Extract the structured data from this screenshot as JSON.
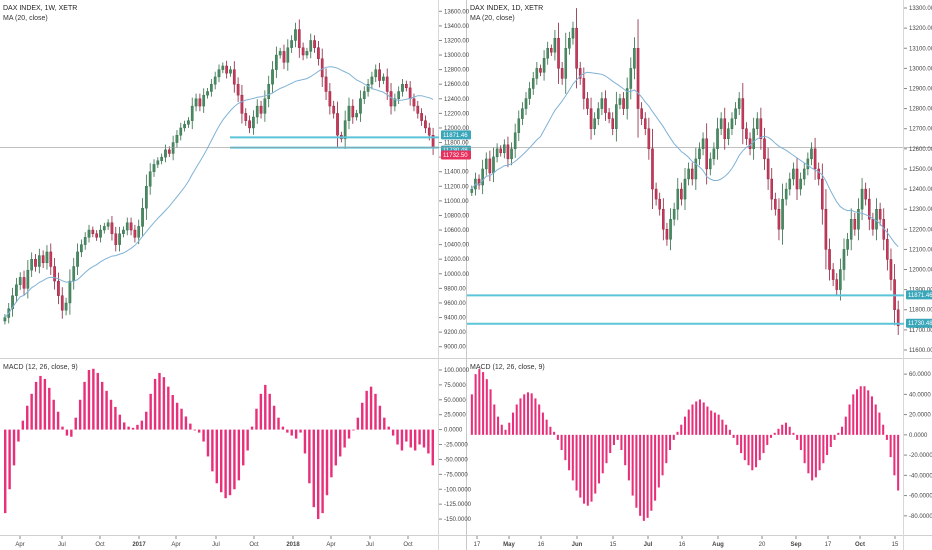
{
  "chart_data": [
    {
      "panel": "weekly",
      "type": "candlestick",
      "title": "DAX INDEX, 1W, XETR",
      "indicator": "MA (20, close)",
      "x_tick_labels": [
        "Apr",
        "Jul",
        "Oct",
        "2017",
        "Apr",
        "Jul",
        "Oct",
        "2018",
        "Apr",
        "Jul",
        "Oct"
      ],
      "y_range": [
        8900,
        13700
      ],
      "y_ticks": [
        9000,
        9200,
        9400,
        9600,
        9800,
        10000,
        10200,
        10400,
        10600,
        10800,
        11000,
        11200,
        11400,
        11600,
        11800,
        12000,
        12200,
        12400,
        12600,
        12800,
        13000,
        13200,
        13400,
        13600
      ],
      "y_tick_labels": [
        "9000.00",
        "9200.00",
        "9400.00",
        "9600.00",
        "9800.00",
        "10000.00",
        "10200.00",
        "10400.00",
        "10600.00",
        "10800.00",
        "11000.00",
        "11200.00",
        "11400.00",
        "11600.00",
        "11800.00",
        "12000.00",
        "12200.00",
        "12400.00",
        "12600.00",
        "12800.00",
        "13000.00",
        "13200.00",
        "13400.00",
        "13600.00"
      ],
      "closes": [
        9400,
        9520,
        9700,
        9850,
        9950,
        9800,
        10050,
        10200,
        10100,
        10250,
        10150,
        10300,
        10100,
        9900,
        9700,
        9500,
        9600,
        9900,
        10100,
        10300,
        10400,
        10500,
        10600,
        10550,
        10500,
        10600,
        10650,
        10700,
        10550,
        10400,
        10550,
        10600,
        10700,
        10600,
        10500,
        10650,
        10900,
        11200,
        11400,
        11500,
        11550,
        11600,
        11700,
        11650,
        11800,
        11900,
        12000,
        12050,
        12100,
        12300,
        12400,
        12300,
        12450,
        12500,
        12600,
        12700,
        12800,
        12850,
        12750,
        12800,
        12600,
        12450,
        12200,
        12100,
        12000,
        12150,
        12300,
        12200,
        12400,
        12600,
        12800,
        13000,
        13050,
        12900,
        13100,
        13200,
        13350,
        13100,
        13000,
        13050,
        13200,
        13100,
        12950,
        12700,
        12500,
        12300,
        12200,
        11900,
        11850,
        12100,
        12300,
        12150,
        12200,
        12400,
        12500,
        12600,
        12700,
        12800,
        12650,
        12700,
        12500,
        12300,
        12400,
        12500,
        12600,
        12550,
        12400,
        12300,
        12200,
        12100,
        12000,
        11900,
        11732.5
      ],
      "ma20_name": "MA (20, close)",
      "level_lines": [
        {
          "value": 11871.46,
          "label": "11871.46"
        },
        {
          "value": 11730.48,
          "label": "11730.48"
        }
      ],
      "last_price": {
        "value": 11732.5,
        "label": "11732.50"
      },
      "macd": {
        "title": "MACD (12, 26, close, 9)",
        "y_range": [
          -170,
          110
        ],
        "y_ticks": [
          100,
          75,
          50,
          25,
          0,
          -25,
          -50,
          -75,
          -100,
          -125,
          -150
        ],
        "y_tick_labels": [
          "100.0000",
          "75.0000",
          "50.0000",
          "25.0000",
          "0.0000",
          "-25.0000",
          "-50.0000",
          "-75.0000",
          "-100.0000",
          "-125.0000",
          "-150.0000"
        ],
        "histogram": [
          -140,
          -100,
          -60,
          -20,
          15,
          40,
          60,
          80,
          90,
          85,
          70,
          50,
          30,
          5,
          -10,
          -12,
          20,
          50,
          80,
          100,
          102,
          95,
          80,
          65,
          50,
          38,
          25,
          12,
          5,
          3,
          8,
          15,
          30,
          60,
          85,
          95,
          88,
          72,
          58,
          45,
          35,
          22,
          10,
          0,
          -5,
          -20,
          -45,
          -70,
          -90,
          -105,
          -115,
          -110,
          -100,
          -85,
          -60,
          -35,
          5,
          35,
          60,
          75,
          60,
          40,
          20,
          5,
          -5,
          -10,
          -15,
          -5,
          -40,
          -90,
          -130,
          -150,
          -140,
          -110,
          -80,
          -60,
          -45,
          -30,
          -15,
          0,
          20,
          45,
          65,
          72,
          60,
          40,
          20,
          5,
          -10,
          -25,
          -35,
          -20,
          -30,
          -35,
          -25,
          -30,
          -40,
          -60
        ]
      }
    },
    {
      "panel": "daily",
      "type": "candlestick",
      "title": "DAX INDEX, 1D, XETR",
      "indicator": "MA (20, close)",
      "x_tick_labels": [
        "17",
        "May",
        "16",
        "Jun",
        "15",
        "Jul",
        "16",
        "Aug",
        "20",
        "Sep",
        "17",
        "Oct",
        "15"
      ],
      "y_range": [
        11580,
        13320
      ],
      "y_ticks": [
        11600,
        11700,
        11800,
        11900,
        12000,
        12100,
        12200,
        12300,
        12400,
        12500,
        12600,
        12700,
        12800,
        12900,
        13000,
        13100,
        13200,
        13300
      ],
      "y_tick_labels": [
        "11600.00",
        "11700.00",
        "11800.00",
        "11900.00",
        "12000.00",
        "12100.00",
        "12200.00",
        "12300.00",
        "12400.00",
        "12500.00",
        "12600.00",
        "12700.00",
        "12800.00",
        "12900.00",
        "13000.00",
        "13100.00",
        "13200.00",
        "13300.00"
      ],
      "closes": [
        12400,
        12450,
        12420,
        12500,
        12550,
        12480,
        12560,
        12600,
        12580,
        12620,
        12550,
        12600,
        12680,
        12750,
        12800,
        12850,
        12900,
        12950,
        13000,
        12980,
        13050,
        13100,
        13080,
        13150,
        13000,
        12950,
        13100,
        13150,
        13200,
        13000,
        12950,
        12850,
        12800,
        12700,
        12750,
        12800,
        12850,
        12780,
        12750,
        12700,
        12820,
        12850,
        12800,
        12900,
        13000,
        13100,
        12800,
        12750,
        12700,
        12600,
        12400,
        12350,
        12300,
        12200,
        12150,
        12250,
        12300,
        12400,
        12350,
        12450,
        12500,
        12450,
        12550,
        12600,
        12650,
        12500,
        12550,
        12600,
        12700,
        12750,
        12650,
        12700,
        12750,
        12800,
        12850,
        12700,
        12650,
        12600,
        12700,
        12750,
        12650,
        12550,
        12450,
        12350,
        12300,
        12200,
        12350,
        12400,
        12450,
        12500,
        12400,
        12450,
        12500,
        12550,
        12600,
        12500,
        12450,
        12300,
        12100,
        12000,
        11950,
        11900,
        12000,
        12100,
        12150,
        12250,
        12200,
        12300,
        12400,
        12350,
        12250,
        12200,
        12300,
        12250,
        12150,
        12050,
        11950,
        11800,
        11720
      ],
      "ma20_name": "MA (20, close)",
      "level_lines": [
        {
          "value": 11871.46,
          "label": "11871.46"
        },
        {
          "value": 11730.48,
          "label": "11730.48"
        }
      ],
      "macd": {
        "title": "MACD (12, 26, close, 9)",
        "y_range": [
          -95,
          70
        ],
        "y_ticks": [
          60,
          40,
          20,
          0,
          -20,
          -40,
          -60,
          -80
        ],
        "y_tick_labels": [
          "60.0000",
          "40.0000",
          "20.0000",
          "0.0000",
          "-20.0000",
          "-40.0000",
          "-60.0000",
          "-80.0000"
        ],
        "histogram": [
          40,
          60,
          65,
          62,
          55,
          45,
          30,
          18,
          10,
          5,
          12,
          22,
          30,
          36,
          40,
          42,
          41,
          36,
          30,
          22,
          15,
          8,
          3,
          -5,
          -15,
          -25,
          -35,
          -45,
          -55,
          -62,
          -68,
          -70,
          -66,
          -58,
          -48,
          -38,
          -28,
          -18,
          -10,
          -5,
          -15,
          -30,
          -45,
          -60,
          -72,
          -80,
          -85,
          -82,
          -75,
          -65,
          -52,
          -40,
          -28,
          -15,
          -5,
          3,
          10,
          18,
          25,
          30,
          33,
          35,
          32,
          28,
          24,
          22,
          20,
          15,
          10,
          5,
          -3,
          -10,
          -18,
          -25,
          -30,
          -35,
          -32,
          -25,
          -18,
          -10,
          -3,
          2,
          6,
          10,
          12,
          8,
          2,
          -5,
          -15,
          -28,
          -38,
          -45,
          -42,
          -35,
          -28,
          -20,
          -12,
          -5,
          2,
          8,
          18,
          30,
          40,
          45,
          48,
          48,
          44,
          38,
          30,
          22,
          10,
          -5,
          -22,
          -40,
          -55
        ]
      }
    }
  ]
}
